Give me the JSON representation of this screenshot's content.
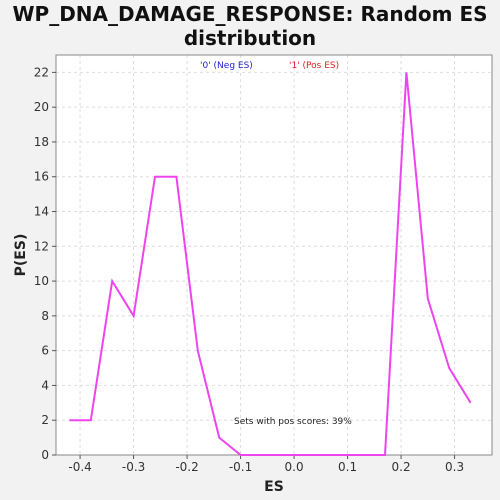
{
  "chart_data": {
    "type": "line",
    "title_line1": "WP_DNA_DAMAGE_RESPONSE: Random ES",
    "title_line2": "distribution",
    "xlabel": "ES",
    "ylabel": "P(ES)",
    "xlim": [
      -0.445,
      0.37
    ],
    "ylim": [
      0,
      23
    ],
    "xticks": [
      -0.4,
      -0.3,
      -0.2,
      -0.1,
      0.0,
      0.1,
      0.2,
      0.3
    ],
    "xtick_labels": [
      "-0.4",
      "-0.3",
      "-0.2",
      "-0.1",
      "0.0",
      "0.1",
      "0.2",
      "0.3"
    ],
    "yticks": [
      0,
      2,
      4,
      6,
      8,
      10,
      12,
      14,
      16,
      18,
      20,
      22
    ],
    "ytick_labels": [
      "0",
      "2",
      "4",
      "6",
      "8",
      "10",
      "12",
      "14",
      "16",
      "18",
      "20",
      "22"
    ],
    "grid": true,
    "legend": [
      {
        "label": "'0' (Neg ES)",
        "color": "#2222cc"
      },
      {
        "label": "'1' (Pos ES)",
        "color": "#dd2222"
      }
    ],
    "annotation": "Sets with pos scores: 39%",
    "series": [
      {
        "color": "#ee44ee",
        "x": [
          -0.42,
          -0.38,
          -0.34,
          -0.3,
          -0.26,
          -0.22,
          -0.18,
          -0.14,
          -0.1,
          -0.06,
          -0.02,
          0.02,
          0.06,
          0.1,
          0.13,
          0.17,
          0.21,
          0.25,
          0.29,
          0.33
        ],
        "y": [
          2,
          2,
          10,
          8,
          16,
          16,
          6,
          1,
          0,
          0,
          0,
          0,
          0,
          0,
          0,
          0,
          22,
          9,
          5,
          3
        ]
      }
    ]
  }
}
